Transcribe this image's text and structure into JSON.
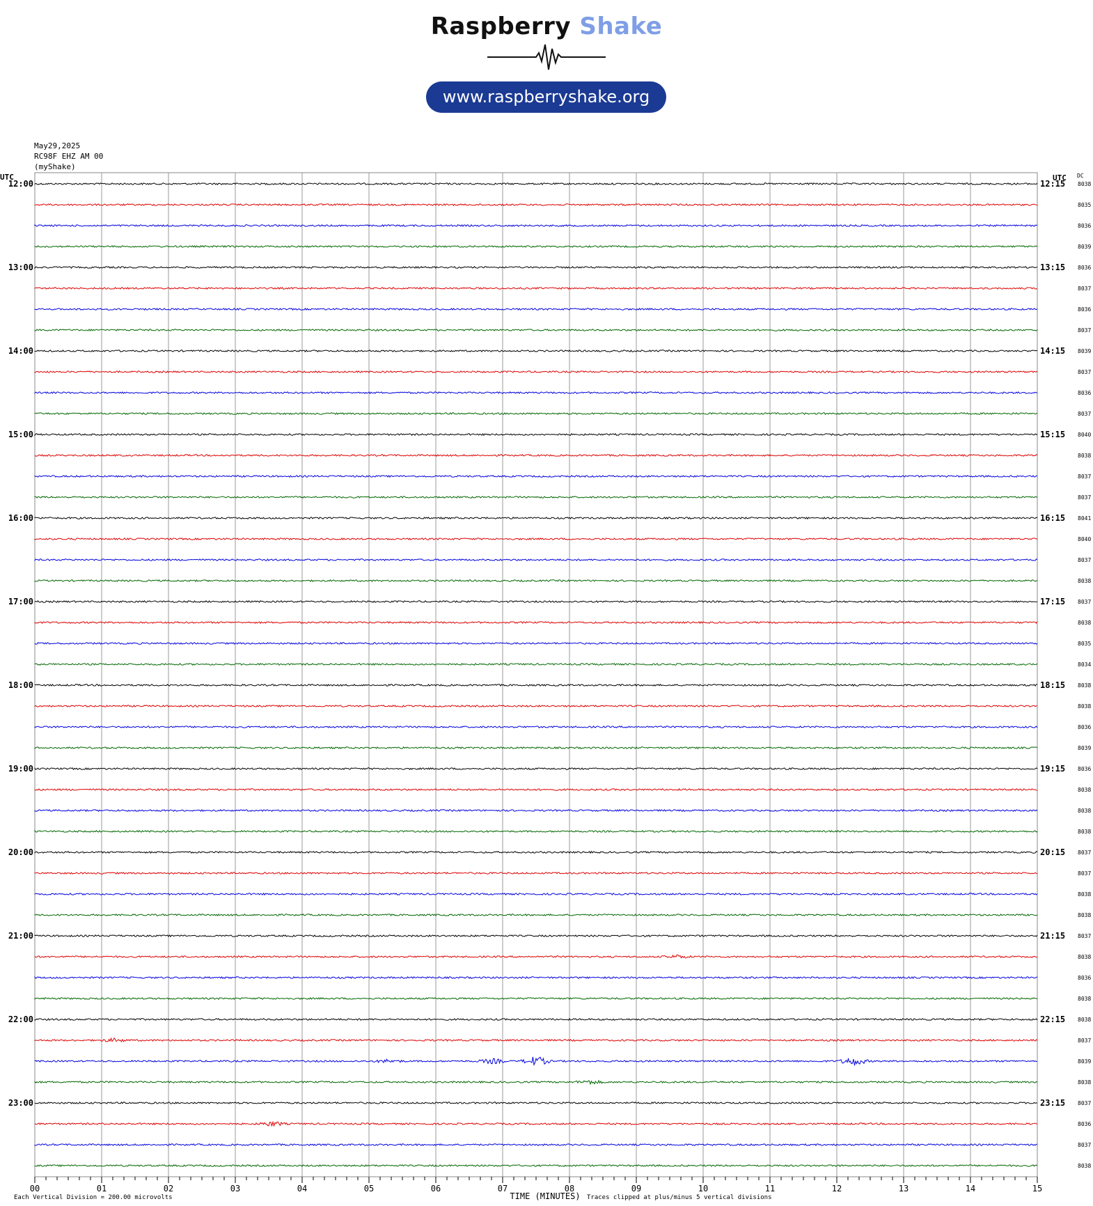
{
  "header": {
    "brand_part1": "Raspberry",
    "brand_part2": "Shake",
    "url": "www.raspberryshake.org",
    "brand_colors": {
      "dark": "#111111",
      "light": "#7f9ee6",
      "pill": "#1b3a93"
    }
  },
  "station": {
    "date": "May29,2025",
    "channel": "RC98F EHZ AM 00",
    "source": "(myShake)"
  },
  "labels": {
    "utc_left": "UTC",
    "utc_right": "UTC",
    "dc": "DC",
    "xlabel": "TIME (MINUTES)",
    "scale_note": "Each Vertical Division =  200.00 microvolts",
    "clip_note": "Traces clipped at plus/minus 5 vertical divisions"
  },
  "chart_data": {
    "type": "line",
    "xlim": [
      0,
      15
    ],
    "x_ticks": [
      "00",
      "01",
      "02",
      "03",
      "04",
      "05",
      "06",
      "07",
      "08",
      "09",
      "10",
      "11",
      "12",
      "13",
      "14",
      "15"
    ],
    "trace_colors": [
      "#000000",
      "#dd0000",
      "#0000dd",
      "#006600"
    ],
    "hour_labels_left": [
      "12:00",
      "13:00",
      "14:00",
      "15:00",
      "16:00",
      "17:00",
      "18:00",
      "19:00",
      "20:00",
      "21:00",
      "22:00",
      "23:00"
    ],
    "hour_labels_right": [
      "12:15",
      "13:15",
      "14:15",
      "15:15",
      "16:15",
      "17:15",
      "18:15",
      "19:15",
      "20:15",
      "21:15",
      "22:15",
      "23:15"
    ],
    "dc_values": [
      "8038",
      "8035",
      "8036",
      "8039",
      "8036",
      "8037",
      "8036",
      "8037",
      "8039",
      "8037",
      "8036",
      "8037",
      "8040",
      "8038",
      "8037",
      "8037",
      "8041",
      "8040",
      "8037",
      "8038",
      "8037",
      "8038",
      "8035",
      "8034",
      "8038",
      "8038",
      "8036",
      "8039",
      "8036",
      "8038",
      "8038",
      "8038",
      "8037",
      "8037",
      "8038",
      "8038",
      "8037",
      "8038",
      "8036",
      "8038",
      "8038",
      "8037",
      "8039",
      "8038",
      "8037",
      "8036",
      "8037",
      "8038"
    ],
    "events": [
      {
        "trace": 42,
        "minute": 7.5,
        "amplitude": 1.8
      },
      {
        "trace": 42,
        "minute": 12.25,
        "amplitude": 1.6
      },
      {
        "trace": 42,
        "minute": 6.85,
        "amplitude": 0.9
      },
      {
        "trace": 42,
        "minute": 5.3,
        "amplitude": 0.6
      },
      {
        "trace": 41,
        "minute": 1.2,
        "amplitude": 0.6
      },
      {
        "trace": 43,
        "minute": 8.3,
        "amplitude": 0.7
      },
      {
        "trace": 45,
        "minute": 3.55,
        "amplitude": 0.8
      },
      {
        "trace": 37,
        "minute": 9.6,
        "amplitude": 0.6
      }
    ]
  }
}
